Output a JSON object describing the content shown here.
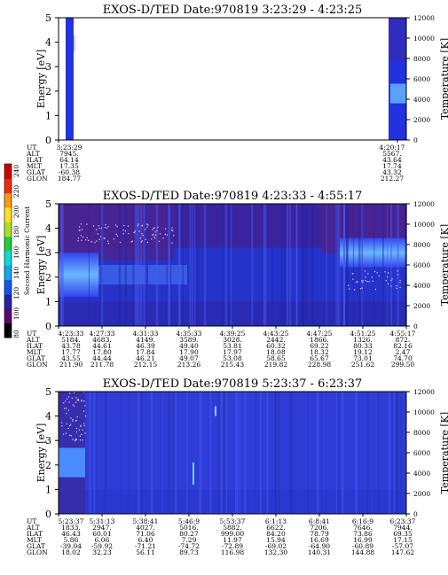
{
  "colorbar": {
    "label": "Second Harmonic Current",
    "ticks": [
      "80",
      "100",
      "120",
      "140",
      "160",
      "180",
      "200",
      "220",
      "240"
    ],
    "colors": [
      "#000000",
      "#5a0a6e",
      "#2a1fa8",
      "#1155ee",
      "#11a6ee",
      "#11d8d8",
      "#22cc44",
      "#aee020",
      "#ffe020",
      "#ff9a10",
      "#ee2a10",
      "#cc0000"
    ]
  },
  "chart_data": [
    {
      "type": "heatmap",
      "title": "EXOS-D/TED   Date:970819  3:23:29 - 4:23:25",
      "ylabel": "Energy [eV]",
      "ylabel_right": "Temperature [K]",
      "ylim": [
        0,
        5
      ],
      "ylim_right": [
        0,
        12000
      ],
      "yticks": [
        "0",
        "1",
        "2",
        "3",
        "4",
        "5"
      ],
      "yticks_right": [
        "0",
        "2000",
        "4000",
        "6000",
        "8000",
        "10000",
        "12000"
      ],
      "row_labels": [
        "UT",
        "ALT",
        "ILAT",
        "MLT",
        "GLAT",
        "GLON"
      ],
      "columns": [
        {
          "values": [
            "3:23:29",
            "7945.",
            "64.14",
            "17.35",
            "-60.38",
            "184.77"
          ]
        },
        {
          "values": [
            "4:20:17",
            "5567.",
            "43.64",
            "17.74",
            "43.32",
            "212.27"
          ]
        }
      ]
    },
    {
      "type": "heatmap",
      "title": "EXOS-D/TED   Date:970819  4:23:33 - 4:55:17",
      "ylabel": "Energy [eV]",
      "ylabel_right": "Temperature [K]",
      "ylim": [
        0,
        5
      ],
      "ylim_right": [
        0,
        12000
      ],
      "yticks": [
        "0",
        "1",
        "2",
        "3",
        "4",
        "5"
      ],
      "yticks_right": [
        "0",
        "2000",
        "4000",
        "6000",
        "8000",
        "10000",
        "12000"
      ],
      "row_labels": [
        "UT",
        "ALT",
        "ILAT",
        "MLT",
        "GLAT",
        "GLON"
      ],
      "columns": [
        {
          "values": [
            "4:23:33",
            "5184.",
            "43.78",
            "17.77",
            "43.55",
            "211.90"
          ]
        },
        {
          "values": [
            "4:27:33",
            "4683.",
            "44.61",
            "17.80",
            "44.44",
            "211.78"
          ]
        },
        {
          "values": [
            "4:31:33",
            "4149.",
            "46.39",
            "17.84",
            "46.21",
            "212.15"
          ]
        },
        {
          "values": [
            "4:35:33",
            "3589.",
            "49.40",
            "17.90",
            "49.07",
            "213.26"
          ]
        },
        {
          "values": [
            "4:39:25",
            "3028.",
            "53.81",
            "17.97",
            "53.08",
            "215.43"
          ]
        },
        {
          "values": [
            "4:43:25",
            "2442.",
            "60.32",
            "18.08",
            "58.65",
            "219.82"
          ]
        },
        {
          "values": [
            "4:47:25",
            "1866.",
            "69.22",
            "18.32",
            "65.67",
            "228.98"
          ]
        },
        {
          "values": [
            "4:51:25",
            "1326.",
            "80.33",
            "19.12",
            "73.01",
            "251.62"
          ]
        },
        {
          "values": [
            "4:55:17",
            "872.",
            "82.16",
            "2.47",
            "74.70",
            "299.50"
          ]
        }
      ]
    },
    {
      "type": "heatmap",
      "title": "EXOS-D/TED   Date:970819  5:23:37 - 6:23:37",
      "ylabel": "Energy [eV]",
      "ylabel_right": "Temperature [K]",
      "ylim": [
        0,
        5
      ],
      "ylim_right": [
        0,
        12000
      ],
      "yticks": [
        "0",
        "1",
        "2",
        "3",
        "4",
        "5"
      ],
      "yticks_right": [
        "0",
        "2000",
        "4000",
        "6000",
        "8000",
        "10000",
        "12000"
      ],
      "row_labels": [
        "UT",
        "ALT",
        "ILAT",
        "MLT",
        "GLAT",
        "GLON"
      ],
      "columns": [
        {
          "values": [
            "5:23:37",
            "1833.",
            "46.43",
            "5.86",
            "-39.04",
            "18.02"
          ]
        },
        {
          "values": [
            "5:31:13",
            "2947.",
            "60.01",
            "6.06",
            "-59.92",
            "32.23"
          ]
        },
        {
          "values": [
            "5:38:41",
            "4027.",
            "71.06",
            "6.40",
            "-71.21",
            "56.11"
          ]
        },
        {
          "values": [
            "5:46:9",
            "5016.",
            "80.27",
            "7.29",
            "-74.72",
            "89.73"
          ]
        },
        {
          "values": [
            "5:53:37",
            "5882.",
            "999.00",
            "11.97",
            "-72.89",
            "116.98"
          ]
        },
        {
          "values": [
            "6:1:13",
            "6622.",
            "84.20",
            "15.94",
            "-69.02",
            "132.30"
          ]
        },
        {
          "values": [
            "6:8:41",
            "7206.",
            "78.79",
            "16.69",
            "-64.90",
            "140.31"
          ]
        },
        {
          "values": [
            "6:16:9",
            "7646.",
            "73.86",
            "16.99",
            "-60.89",
            "144.88"
          ]
        },
        {
          "values": [
            "6:23:37",
            "7944.",
            "69.35",
            "17.15",
            "-57.07",
            "147.62"
          ]
        }
      ]
    }
  ]
}
